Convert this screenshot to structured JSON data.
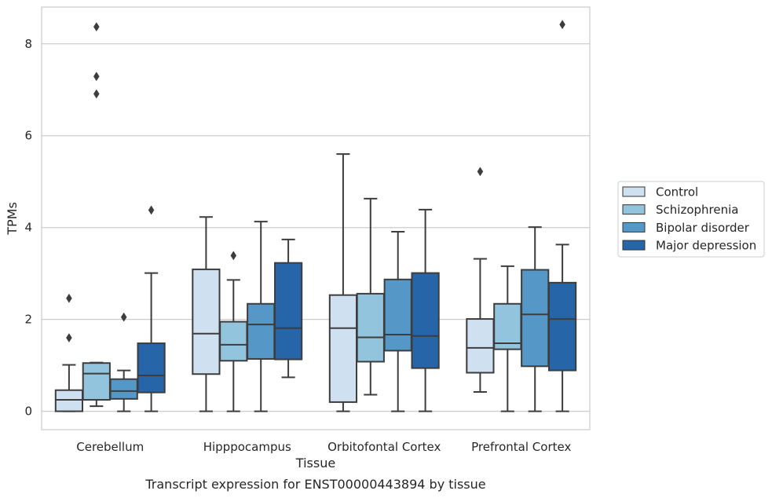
{
  "caption": "Transcript expression for ENST00000443894 by tissue",
  "chart_data": {
    "type": "box",
    "xlabel": "Tissue",
    "ylabel": "TPMs",
    "ylim": [
      -0.4,
      8.8
    ],
    "yticks": [
      0,
      2,
      4,
      6,
      8
    ],
    "grid": true,
    "legend_position": "right-center",
    "categories": [
      "Cerebellum",
      "Hipppocampus",
      "Orbitofontal Cortex",
      "Prefrontal Cortex"
    ],
    "series": [
      {
        "name": "Control",
        "color": "#cfe0f1",
        "boxes": [
          {
            "whisker_low": 0,
            "q1": 0,
            "median": 0.25,
            "q3": 0.46,
            "whisker_high": 1.01,
            "outliers": [
              1.6,
              2.46
            ]
          },
          {
            "whisker_low": 0,
            "q1": 0.81,
            "median": 1.69,
            "q3": 3.09,
            "whisker_high": 4.23,
            "outliers": []
          },
          {
            "whisker_low": 0,
            "q1": 0.2,
            "median": 1.81,
            "q3": 2.53,
            "whisker_high": 5.6,
            "outliers": []
          },
          {
            "whisker_low": 0.42,
            "q1": 0.84,
            "median": 1.38,
            "q3": 2.01,
            "whisker_high": 3.32,
            "outliers": [
              5.22
            ]
          }
        ]
      },
      {
        "name": "Schizophrenia",
        "color": "#93c4de",
        "boxes": [
          {
            "whisker_low": 0.11,
            "q1": 0.25,
            "median": 0.82,
            "q3": 1.05,
            "whisker_high": 1.06,
            "outliers": [
              6.91,
              7.29,
              8.37
            ]
          },
          {
            "whisker_low": 0,
            "q1": 1.1,
            "median": 1.45,
            "q3": 1.95,
            "whisker_high": 2.86,
            "outliers": [
              3.39
            ]
          },
          {
            "whisker_low": 0.36,
            "q1": 1.08,
            "median": 1.61,
            "q3": 2.56,
            "whisker_high": 4.63,
            "outliers": []
          },
          {
            "whisker_low": 0,
            "q1": 1.35,
            "median": 1.48,
            "q3": 2.34,
            "whisker_high": 3.16,
            "outliers": []
          }
        ]
      },
      {
        "name": "Bipolar disorder",
        "color": "#5597c6",
        "boxes": [
          {
            "whisker_low": 0,
            "q1": 0.27,
            "median": 0.44,
            "q3": 0.7,
            "whisker_high": 0.89,
            "outliers": [
              2.05
            ]
          },
          {
            "whisker_low": 0,
            "q1": 1.14,
            "median": 1.89,
            "q3": 2.34,
            "whisker_high": 4.13,
            "outliers": []
          },
          {
            "whisker_low": 0,
            "q1": 1.32,
            "median": 1.67,
            "q3": 2.87,
            "whisker_high": 3.91,
            "outliers": []
          },
          {
            "whisker_low": 0,
            "q1": 0.98,
            "median": 2.11,
            "q3": 3.08,
            "whisker_high": 4.01,
            "outliers": []
          }
        ]
      },
      {
        "name": "Major depression",
        "color": "#2565a8",
        "boxes": [
          {
            "whisker_low": 0,
            "q1": 0.41,
            "median": 0.78,
            "q3": 1.48,
            "whisker_high": 3.01,
            "outliers": [
              4.38
            ]
          },
          {
            "whisker_low": 0.74,
            "q1": 1.13,
            "median": 1.81,
            "q3": 3.23,
            "whisker_high": 3.74,
            "outliers": []
          },
          {
            "whisker_low": 0,
            "q1": 0.94,
            "median": 1.64,
            "q3": 3.01,
            "whisker_high": 4.39,
            "outliers": []
          },
          {
            "whisker_low": 0,
            "q1": 0.89,
            "median": 2.01,
            "q3": 2.8,
            "whisker_high": 3.63,
            "outliers": [
              8.42
            ]
          }
        ]
      }
    ]
  }
}
